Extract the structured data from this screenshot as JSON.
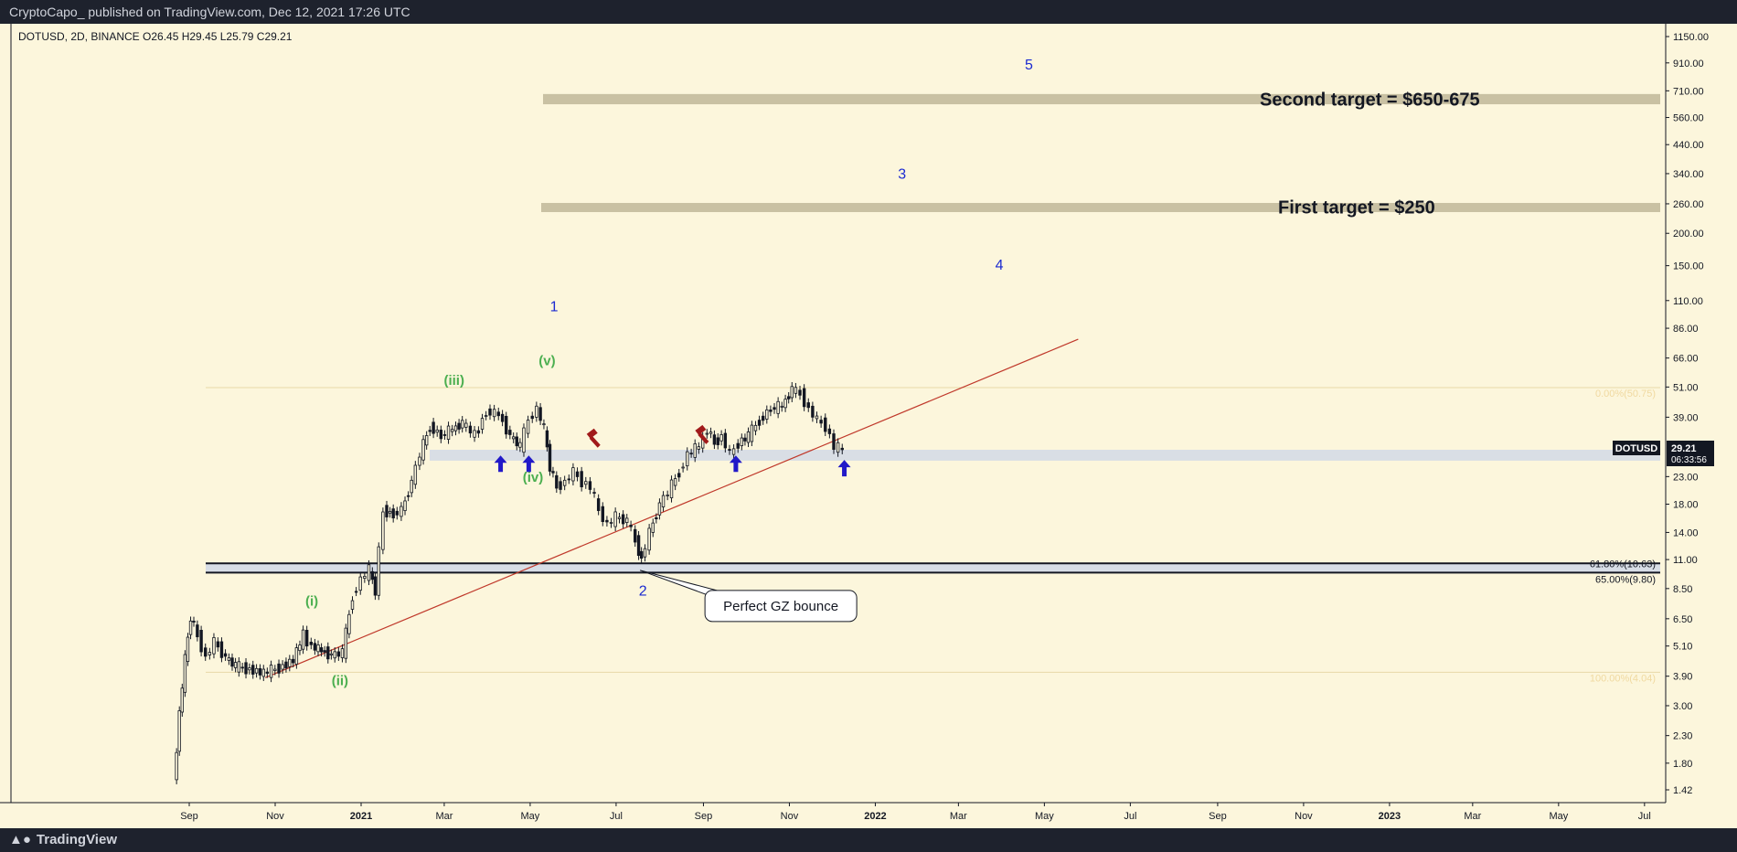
{
  "header": {
    "publish_text": "CryptoCapo_ published on TradingView.com, Dec 12, 2021 17:26 UTC"
  },
  "footer": {
    "brand": "TradingView",
    "logo_icon": "tradingview-logo-icon"
  },
  "chart_data": {
    "type": "candlestick",
    "symbol_info": "DOTUSD, 2D, BINANCE  O26.45  H29.45  L25.79  C29.21",
    "scale": "log",
    "ylim": [
      1.42,
      1150
    ],
    "y_ticks": [
      "1150.00",
      "910.00",
      "710.00",
      "560.00",
      "440.00",
      "340.00",
      "260.00",
      "200.00",
      "150.00",
      "110.00",
      "86.00",
      "66.00",
      "51.00",
      "39.00",
      "29.21",
      "23.00",
      "18.00",
      "14.00",
      "11.00",
      "8.50",
      "6.50",
      "5.10",
      "3.90",
      "3.00",
      "2.30",
      "1.80",
      "1.42"
    ],
    "x_ticks": [
      "Sep",
      "Nov",
      "2021",
      "Mar",
      "May",
      "Jul",
      "Sep",
      "Nov",
      "2022",
      "Mar",
      "May",
      "Jul",
      "Sep",
      "Nov",
      "2023",
      "Mar",
      "May",
      "Jul"
    ],
    "price_label": {
      "symbol": "DOTUSD",
      "price": "29.21",
      "countdown": "06:33:56"
    },
    "colors": {
      "background": "#fcf6dc",
      "candle": "#131722",
      "trendline": "#c0392b",
      "zone": "#d5dbe6",
      "target_band": "#c9c1a3",
      "wave_blue": "#1b2ad1",
      "wave_green": "#4caf50",
      "arrow": "#2219c8",
      "marker_red": "#a11a1a"
    },
    "price_series": [
      {
        "x": "2020-08-22",
        "y": 1.5
      },
      {
        "x": "2020-08-26",
        "y": 2.8
      },
      {
        "x": "2020-08-30",
        "y": 4.5
      },
      {
        "x": "2020-09-03",
        "y": 6.6
      },
      {
        "x": "2020-09-08",
        "y": 5.6
      },
      {
        "x": "2020-09-14",
        "y": 4.6
      },
      {
        "x": "2020-09-20",
        "y": 5.3
      },
      {
        "x": "2020-09-28",
        "y": 4.6
      },
      {
        "x": "2020-10-05",
        "y": 4.25
      },
      {
        "x": "2020-10-15",
        "y": 4.15
      },
      {
        "x": "2020-10-25",
        "y": 4.0
      },
      {
        "x": "2020-11-05",
        "y": 4.2
      },
      {
        "x": "2020-11-15",
        "y": 4.5
      },
      {
        "x": "2020-11-22",
        "y": 5.6
      },
      {
        "x": "2020-11-28",
        "y": 5.1
      },
      {
        "x": "2020-12-05",
        "y": 4.9
      },
      {
        "x": "2020-12-12",
        "y": 4.7
      },
      {
        "x": "2020-12-20",
        "y": 4.8
      },
      {
        "x": "2020-12-27",
        "y": 8.0
      },
      {
        "x": "2021-01-02",
        "y": 9.2
      },
      {
        "x": "2021-01-08",
        "y": 10.0
      },
      {
        "x": "2021-01-12",
        "y": 8.3
      },
      {
        "x": "2021-01-18",
        "y": 17.0
      },
      {
        "x": "2021-01-25",
        "y": 16.5
      },
      {
        "x": "2021-01-31",
        "y": 17.0
      },
      {
        "x": "2021-02-07",
        "y": 22.0
      },
      {
        "x": "2021-02-13",
        "y": 28.0
      },
      {
        "x": "2021-02-20",
        "y": 36.0
      },
      {
        "x": "2021-02-28",
        "y": 33.0
      },
      {
        "x": "2021-03-08",
        "y": 35.0
      },
      {
        "x": "2021-03-15",
        "y": 37.0
      },
      {
        "x": "2021-03-24",
        "y": 33.0
      },
      {
        "x": "2021-04-01",
        "y": 41.0
      },
      {
        "x": "2021-04-10",
        "y": 40.0
      },
      {
        "x": "2021-04-18",
        "y": 33.0
      },
      {
        "x": "2021-04-25",
        "y": 30.0
      },
      {
        "x": "2021-05-01",
        "y": 38.0
      },
      {
        "x": "2021-05-07",
        "y": 42.0
      },
      {
        "x": "2021-05-12",
        "y": 35.0
      },
      {
        "x": "2021-05-16",
        "y": 25.0
      },
      {
        "x": "2021-05-21",
        "y": 21.0
      },
      {
        "x": "2021-05-27",
        "y": 22.0
      },
      {
        "x": "2021-06-02",
        "y": 24.0
      },
      {
        "x": "2021-06-08",
        "y": 22.0
      },
      {
        "x": "2021-06-14",
        "y": 21.0
      },
      {
        "x": "2021-06-20",
        "y": 17.0
      },
      {
        "x": "2021-06-26",
        "y": 15.0
      },
      {
        "x": "2021-07-02",
        "y": 16.0
      },
      {
        "x": "2021-07-10",
        "y": 15.5
      },
      {
        "x": "2021-07-16",
        "y": 13.0
      },
      {
        "x": "2021-07-20",
        "y": 11.0
      },
      {
        "x": "2021-07-26",
        "y": 14.0
      },
      {
        "x": "2021-08-02",
        "y": 18.0
      },
      {
        "x": "2021-08-08",
        "y": 20.0
      },
      {
        "x": "2021-08-16",
        "y": 24.0
      },
      {
        "x": "2021-08-22",
        "y": 28.0
      },
      {
        "x": "2021-08-30",
        "y": 30.0
      },
      {
        "x": "2021-09-05",
        "y": 35.0
      },
      {
        "x": "2021-09-10",
        "y": 31.0
      },
      {
        "x": "2021-09-15",
        "y": 33.0
      },
      {
        "x": "2021-09-21",
        "y": 28.0
      },
      {
        "x": "2021-09-27",
        "y": 31.0
      },
      {
        "x": "2021-10-04",
        "y": 33.0
      },
      {
        "x": "2021-10-12",
        "y": 38.0
      },
      {
        "x": "2021-10-20",
        "y": 42.0
      },
      {
        "x": "2021-10-28",
        "y": 43.0
      },
      {
        "x": "2021-11-04",
        "y": 50.0
      },
      {
        "x": "2021-11-10",
        "y": 48.0
      },
      {
        "x": "2021-11-16",
        "y": 42.0
      },
      {
        "x": "2021-11-22",
        "y": 38.0
      },
      {
        "x": "2021-11-28",
        "y": 36.0
      },
      {
        "x": "2021-12-04",
        "y": 30.0
      },
      {
        "x": "2021-12-10",
        "y": 29.21
      }
    ],
    "zones": [
      {
        "name": "support-zone",
        "y_from": 26.5,
        "y_to": 29.2
      },
      {
        "name": "golden-zone",
        "y_from": 9.8,
        "y_to": 10.63
      }
    ],
    "target_bands": [
      {
        "label": "Second  target = $650-675",
        "y_from": 630,
        "y_to": 690
      },
      {
        "label": "First target = $250",
        "y_from": 244,
        "y_to": 262
      }
    ],
    "fib_levels": [
      {
        "label": "0.00%(50.75)",
        "y": 50.75
      },
      {
        "label": "61.80%(10.63)",
        "y": 10.63
      },
      {
        "label": "65.00%(9.80)",
        "y": 9.8
      },
      {
        "label": "100.00%(4.04)",
        "y": 4.04
      }
    ],
    "trendline": {
      "x1": "2020-10-25",
      "y1": 3.85,
      "x2": "2022-05-25",
      "y2": 78
    },
    "wave_labels_blue": [
      {
        "text": "1",
        "x": "2021-05-18",
        "y": 100
      },
      {
        "text": "2",
        "x": "2021-07-20",
        "y": 8.0
      },
      {
        "text": "3",
        "x": "2022-01-20",
        "y": 325
      },
      {
        "text": "4",
        "x": "2022-03-30",
        "y": 145
      },
      {
        "text": "5",
        "x": "2022-04-20",
        "y": 860
      }
    ],
    "wave_labels_green": [
      {
        "text": "(i)",
        "x": "2020-11-27",
        "y": 7.3
      },
      {
        "text": "(ii)",
        "x": "2020-12-17",
        "y": 3.6
      },
      {
        "text": "(iii)",
        "x": "2021-03-08",
        "y": 52
      },
      {
        "text": "(iv)",
        "x": "2021-05-03",
        "y": 22
      },
      {
        "text": "(v)",
        "x": "2021-05-13",
        "y": 62
      }
    ],
    "up_arrows": [
      {
        "x": "2021-04-10",
        "y": 26.0
      },
      {
        "x": "2021-04-30",
        "y": 26.0
      },
      {
        "x": "2021-09-24",
        "y": 26.0
      },
      {
        "x": "2021-12-10",
        "y": 25.0
      }
    ],
    "red_markers": [
      {
        "x": "2021-06-14",
        "y": 32.0
      },
      {
        "x": "2021-08-30",
        "y": 33.0
      }
    ],
    "callout": {
      "text": "Perfect GZ bounce",
      "anchor_x": "2021-07-18",
      "anchor_y": 10.0
    }
  }
}
